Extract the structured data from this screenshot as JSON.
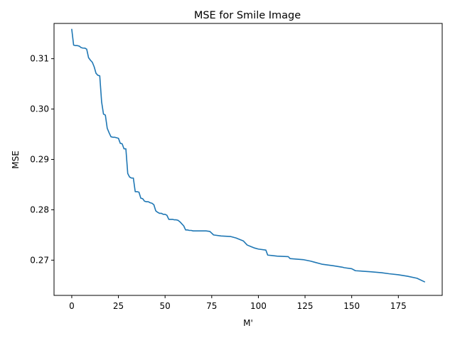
{
  "chart_data": {
    "type": "line",
    "title": "MSE for Smile Image",
    "xlabel": "M'",
    "ylabel": "MSE",
    "xlim": [
      -9.5,
      198.5
    ],
    "ylim": [
      0.263,
      0.317
    ],
    "xticks": [
      0,
      25,
      50,
      75,
      100,
      125,
      150,
      175
    ],
    "yticks": [
      0.27,
      0.28,
      0.29,
      0.3,
      0.31
    ],
    "ytick_labels": [
      "0.27",
      "0.28",
      "0.29",
      "0.30",
      "0.31"
    ],
    "grid": false,
    "legend": "none",
    "series": [
      {
        "color": "#1f77b4",
        "x": [
          0,
          1,
          2,
          3,
          4,
          5,
          6,
          7,
          8,
          9,
          10,
          11,
          12,
          13,
          14,
          15,
          16,
          17,
          18,
          19,
          20,
          21,
          22,
          23,
          24,
          25,
          26,
          27,
          28,
          29,
          30,
          31,
          32,
          33,
          34,
          35,
          36,
          37,
          38,
          39,
          40,
          41,
          42,
          43,
          44,
          45,
          46,
          47,
          48,
          49,
          50,
          51,
          52,
          53,
          54,
          55,
          56,
          57,
          58,
          59,
          60,
          61,
          62,
          63,
          64,
          65,
          70,
          72,
          74,
          76,
          80,
          85,
          88,
          90,
          92,
          94,
          96,
          98,
          100,
          104,
          105,
          110,
          116,
          117,
          124,
          128,
          130,
          134,
          140,
          145,
          146,
          150,
          152,
          160,
          166,
          170,
          175,
          180,
          185,
          189
        ],
        "y": [
          0.3158,
          0.3127,
          0.3126,
          0.3126,
          0.3125,
          0.3122,
          0.3121,
          0.3121,
          0.3119,
          0.3102,
          0.3097,
          0.3093,
          0.3084,
          0.3071,
          0.3067,
          0.3066,
          0.3014,
          0.299,
          0.2988,
          0.2962,
          0.2953,
          0.2945,
          0.2944,
          0.2944,
          0.2943,
          0.2942,
          0.2932,
          0.2931,
          0.2921,
          0.2921,
          0.2872,
          0.2865,
          0.2863,
          0.2863,
          0.2836,
          0.2836,
          0.2835,
          0.2823,
          0.2822,
          0.2817,
          0.2816,
          0.2816,
          0.2814,
          0.2813,
          0.281,
          0.2798,
          0.2795,
          0.2793,
          0.2793,
          0.2791,
          0.2791,
          0.2789,
          0.2781,
          0.2781,
          0.2781,
          0.278,
          0.278,
          0.2779,
          0.2776,
          0.2772,
          0.2768,
          0.276,
          0.276,
          0.2759,
          0.2759,
          0.2758,
          0.2758,
          0.2758,
          0.2757,
          0.275,
          0.2748,
          0.2747,
          0.2744,
          0.2741,
          0.2738,
          0.273,
          0.2727,
          0.2724,
          0.2722,
          0.272,
          0.271,
          0.2708,
          0.2707,
          0.2703,
          0.2701,
          0.2698,
          0.2696,
          0.2692,
          0.2689,
          0.2686,
          0.2685,
          0.2683,
          0.2679,
          0.2677,
          0.2675,
          0.2673,
          0.2671,
          0.2668,
          0.2664,
          0.2657
        ]
      }
    ]
  }
}
